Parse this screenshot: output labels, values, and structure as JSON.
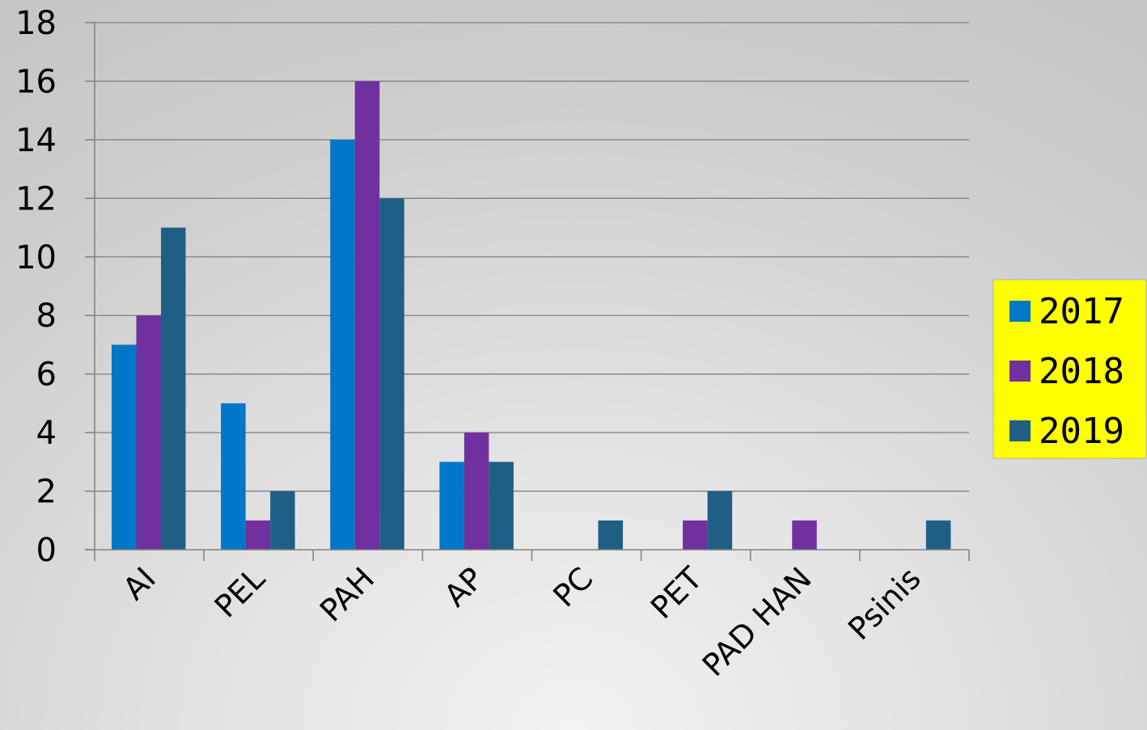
{
  "chart_data": {
    "type": "bar",
    "categories": [
      "AI",
      "PEL",
      "PAH",
      "AP",
      "PC",
      "PET",
      "PAD HAN",
      "Psinis"
    ],
    "series": [
      {
        "name": "2017",
        "color": "#0077c8",
        "values": [
          7,
          5,
          14,
          3,
          0,
          0,
          0,
          0
        ]
      },
      {
        "name": "2018",
        "color": "#7030a0",
        "values": [
          8,
          1,
          16,
          4,
          0,
          1,
          1,
          0
        ]
      },
      {
        "name": "2019",
        "color": "#1f5f86",
        "values": [
          11,
          2,
          12,
          3,
          1,
          2,
          0,
          1
        ]
      }
    ],
    "title": "",
    "xlabel": "",
    "ylabel": "",
    "ylim": [
      0,
      18
    ],
    "yticks": [
      0,
      2,
      4,
      6,
      8,
      10,
      12,
      14,
      16,
      18
    ],
    "grid": true,
    "legend": {
      "position": "right",
      "background": "#ffff00"
    }
  }
}
